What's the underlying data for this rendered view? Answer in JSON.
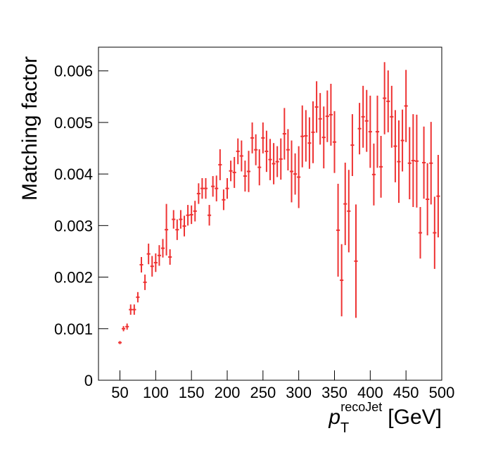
{
  "chart_data": {
    "type": "errorbar",
    "ylabel": "Matching factor",
    "xlabel": {
      "symbol": "p",
      "subscript": "T",
      "superscript": "recoJet",
      "unit": "[GeV]"
    },
    "xlim": [
      20,
      500
    ],
    "ylim": [
      0,
      0.00646
    ],
    "xticks": [
      50,
      100,
      150,
      200,
      250,
      300,
      350,
      400,
      450,
      500
    ],
    "yticks": [
      0,
      0.001,
      0.002,
      0.003,
      0.004,
      0.005,
      0.006
    ],
    "x_error": 2.5,
    "series": [
      {
        "color": "#ee3333",
        "x": [
          50,
          55,
          60,
          65,
          70,
          75,
          80,
          85,
          90,
          95,
          100,
          105,
          110,
          115,
          120,
          125,
          130,
          135,
          140,
          145,
          150,
          155,
          160,
          165,
          170,
          175,
          180,
          185,
          190,
          195,
          200,
          205,
          210,
          215,
          220,
          225,
          230,
          235,
          240,
          245,
          250,
          255,
          260,
          265,
          270,
          275,
          280,
          285,
          290,
          295,
          300,
          305,
          310,
          315,
          320,
          325,
          330,
          335,
          340,
          345,
          350,
          355,
          360,
          365,
          370,
          375,
          380,
          385,
          390,
          395,
          400,
          405,
          410,
          415,
          420,
          425,
          430,
          435,
          440,
          445,
          450,
          455,
          460,
          465,
          470,
          475,
          480,
          485,
          490,
          495
        ],
        "values": [
          0.00073,
          0.001,
          0.00104,
          0.00137,
          0.00137,
          0.00161,
          0.00224,
          0.0019,
          0.00245,
          0.00221,
          0.00228,
          0.00242,
          0.00256,
          0.00292,
          0.00239,
          0.00312,
          0.00292,
          0.00312,
          0.00299,
          0.0032,
          0.00321,
          0.00328,
          0.00362,
          0.00372,
          0.00372,
          0.0032,
          0.00376,
          0.00372,
          0.00418,
          0.0035,
          0.00372,
          0.00406,
          0.00403,
          0.00444,
          0.00435,
          0.00396,
          0.00405,
          0.0047,
          0.00447,
          0.00413,
          0.0047,
          0.00444,
          0.00428,
          0.0042,
          0.00424,
          0.00429,
          0.00478,
          0.00447,
          0.00405,
          0.004,
          0.00394,
          0.00473,
          0.00474,
          0.0046,
          0.00481,
          0.0053,
          0.00507,
          0.00471,
          0.00512,
          0.00515,
          0.00462,
          0.00291,
          0.00194,
          0.00342,
          0.00328,
          0.00456,
          0.00231,
          0.00488,
          0.00511,
          0.00503,
          0.00482,
          0.00399,
          0.00482,
          0.00414,
          0.00547,
          0.00541,
          0.00511,
          0.00454,
          0.00424,
          0.00465,
          0.00532,
          0.00421,
          0.00426,
          0.00425,
          0.00286,
          0.00422,
          0.00351,
          0.00421,
          0.00286,
          0.00357
        ],
        "errors": [
          3e-05,
          5e-05,
          6e-05,
          0.0001,
          0.0001,
          0.0001,
          0.00015,
          0.00015,
          0.0002,
          0.0002,
          0.00018,
          0.0002,
          0.00018,
          0.0005,
          0.00015,
          0.00018,
          0.0002,
          0.00018,
          0.0002,
          0.0002,
          0.00018,
          0.0002,
          0.0002,
          0.0002,
          0.0002,
          0.0002,
          0.0002,
          0.00025,
          0.0003,
          0.0002,
          0.0002,
          0.0002,
          0.0003,
          0.00025,
          0.0003,
          0.0003,
          0.0004,
          0.0003,
          0.0003,
          0.00035,
          0.0003,
          0.0004,
          0.0004,
          0.0004,
          0.0003,
          0.0004,
          0.0005,
          0.0004,
          0.0006,
          0.0004,
          0.0006,
          0.0006,
          0.0005,
          0.0005,
          0.0006,
          0.0005,
          0.0005,
          0.0006,
          0.0005,
          0.0006,
          0.0006,
          0.0009,
          0.0007,
          0.0008,
          0.0008,
          0.0006,
          0.0011,
          0.0005,
          0.0006,
          0.0006,
          0.0007,
          0.0006,
          0.0007,
          0.0006,
          0.0007,
          0.0006,
          0.0006,
          0.0007,
          0.0008,
          0.0006,
          0.0007,
          0.0007,
          0.0009,
          0.0009,
          0.0005,
          0.0007,
          0.0007,
          0.0008,
          0.0007,
          0.0008
        ]
      }
    ]
  }
}
